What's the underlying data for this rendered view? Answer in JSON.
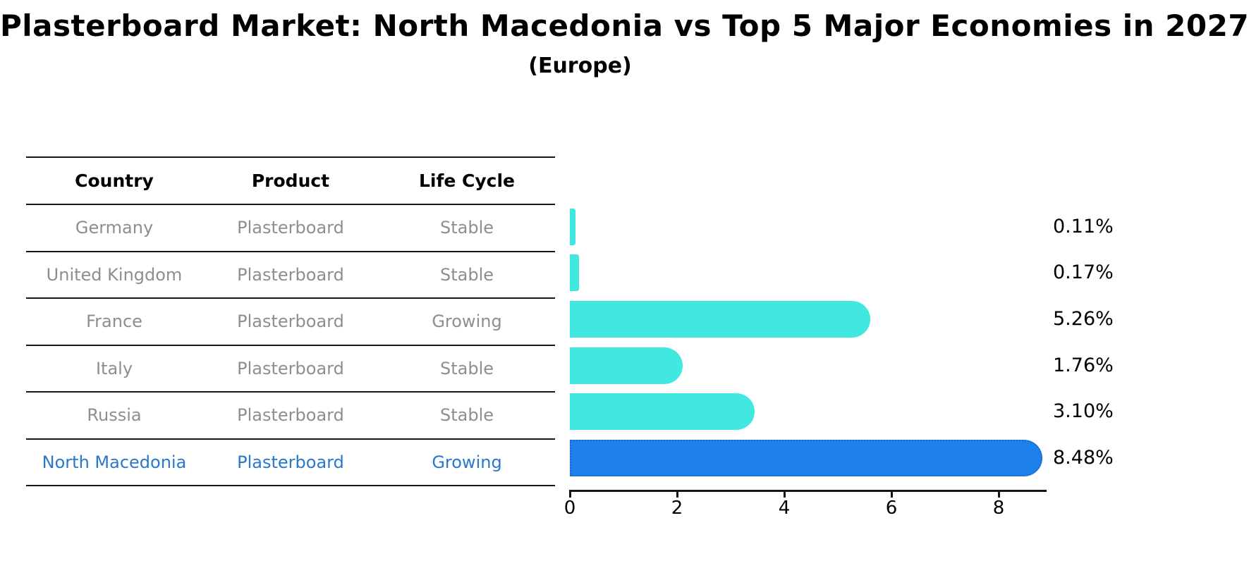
{
  "title": "Plasterboard Market: North Macedonia vs Top 5 Major Economies in 2027",
  "subtitle": "(Europe)",
  "table": {
    "headers": [
      "Country",
      "Product",
      "Life Cycle"
    ],
    "rows": [
      {
        "country": "Germany",
        "product": "Plasterboard",
        "life_cycle": "Stable",
        "value_label": "0.11%",
        "highlight": false
      },
      {
        "country": "United Kingdom",
        "product": "Plasterboard",
        "life_cycle": "Stable",
        "value_label": "0.17%",
        "highlight": false
      },
      {
        "country": "France",
        "product": "Plasterboard",
        "life_cycle": "Growing",
        "value_label": "5.26%",
        "highlight": false
      },
      {
        "country": "Italy",
        "product": "Plasterboard",
        "life_cycle": "Stable",
        "value_label": "1.76%",
        "highlight": false
      },
      {
        "country": "Russia",
        "product": "Plasterboard",
        "life_cycle": "Stable",
        "value_label": "3.10%",
        "highlight": false
      },
      {
        "country": "North Macedonia",
        "product": "Plasterboard",
        "life_cycle": "Growing",
        "value_label": "8.48%",
        "highlight": true
      }
    ]
  },
  "chart_data": {
    "type": "bar",
    "orientation": "horizontal",
    "title": "Plasterboard Market: North Macedonia vs Top 5 Major Economies in 2027",
    "subtitle": "(Europe)",
    "categories": [
      "Germany",
      "United Kingdom",
      "France",
      "Italy",
      "Russia",
      "North Macedonia"
    ],
    "values": [
      0.11,
      0.17,
      5.26,
      1.76,
      3.1,
      8.48
    ],
    "value_labels": [
      "0.11%",
      "0.17%",
      "5.26%",
      "1.76%",
      "3.10%",
      "8.48%"
    ],
    "xlabel": "",
    "ylabel": "",
    "xlim": [
      0,
      8.9
    ],
    "xticks": [
      0,
      2,
      4,
      6,
      8
    ],
    "grid": false,
    "legend": false,
    "bar_color": "#40e8e0",
    "highlight_color": "#1e80ea",
    "highlight_border_color": "#1b66d1",
    "highlight_index": 5
  },
  "colors": {
    "text_primary": "#000000",
    "text_muted": "#8e8e8e",
    "text_highlight": "#2878cd",
    "rule": "#141414"
  }
}
